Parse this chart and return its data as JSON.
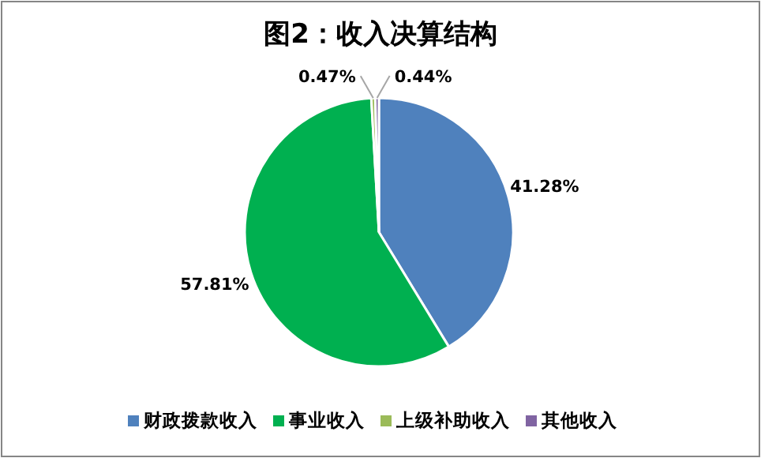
{
  "chart_data": {
    "type": "pie",
    "title": "图2：收入决算结构",
    "categories": [
      "财政拨款收入",
      "事业收入",
      "上级补助收入",
      "其他收入"
    ],
    "values": [
      41.28,
      57.81,
      0.47,
      0.44
    ],
    "value_labels": [
      "41.28%",
      "57.81%",
      "0.47%",
      "0.44%"
    ],
    "colors": [
      "#4f81bd",
      "#00b050",
      "#9bbb59",
      "#8064a2"
    ],
    "legend": "bottom"
  }
}
